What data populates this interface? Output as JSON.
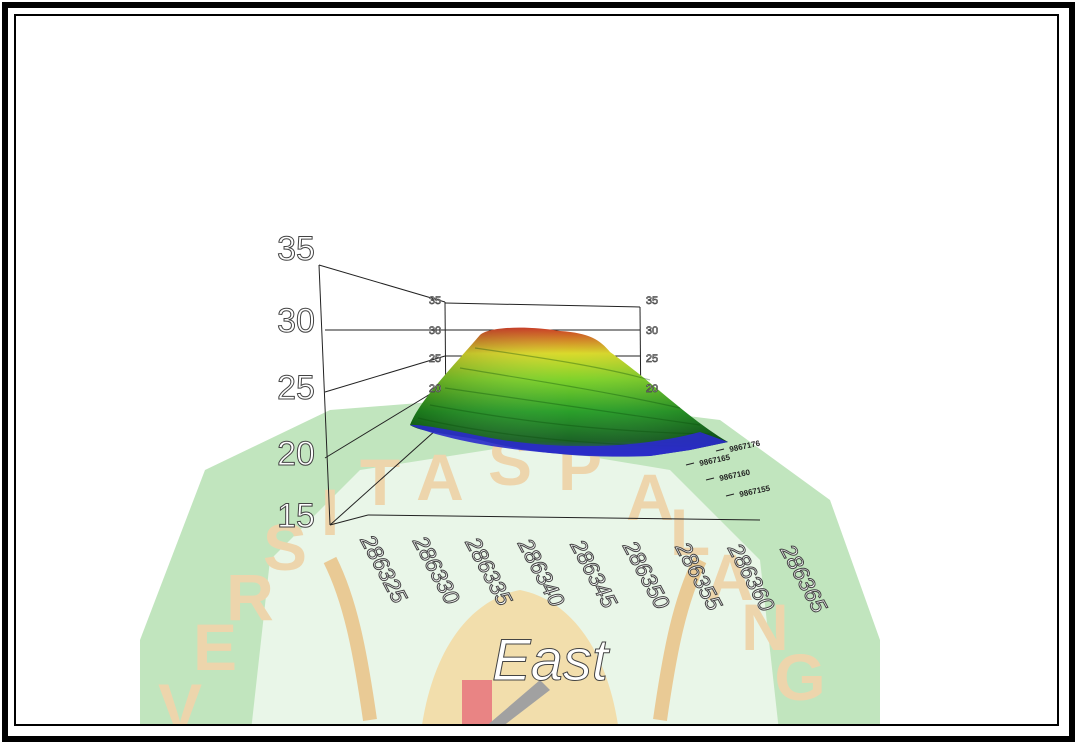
{
  "chart_data": {
    "type": "surface-3d",
    "title": "",
    "xlabel": "East",
    "ylabel": "",
    "zlabel": "",
    "z_ticks": [
      "15",
      "20",
      "25",
      "30",
      "35"
    ],
    "z_back_ticks": [
      "35",
      "30",
      "25",
      "20"
    ],
    "x_ticks": [
      "286325",
      "286330",
      "286335",
      "286340",
      "286345",
      "286350",
      "286355",
      "286360",
      "286365"
    ],
    "y_ticks": [
      "9867176",
      "9867165",
      "9867160",
      "9867155"
    ],
    "zlim": [
      15,
      35
    ],
    "colormap": [
      "#2a2acc",
      "#1a8a1a",
      "#44c022",
      "#d8d820",
      "#c83018"
    ],
    "surface_peak_z": 30
  },
  "watermark_text": "UNIVERSITAS PALANGKA RAYA",
  "watermark_colors": {
    "shield": "#8fd08a",
    "letters": "#e0b46a",
    "accent": "#d82020"
  }
}
